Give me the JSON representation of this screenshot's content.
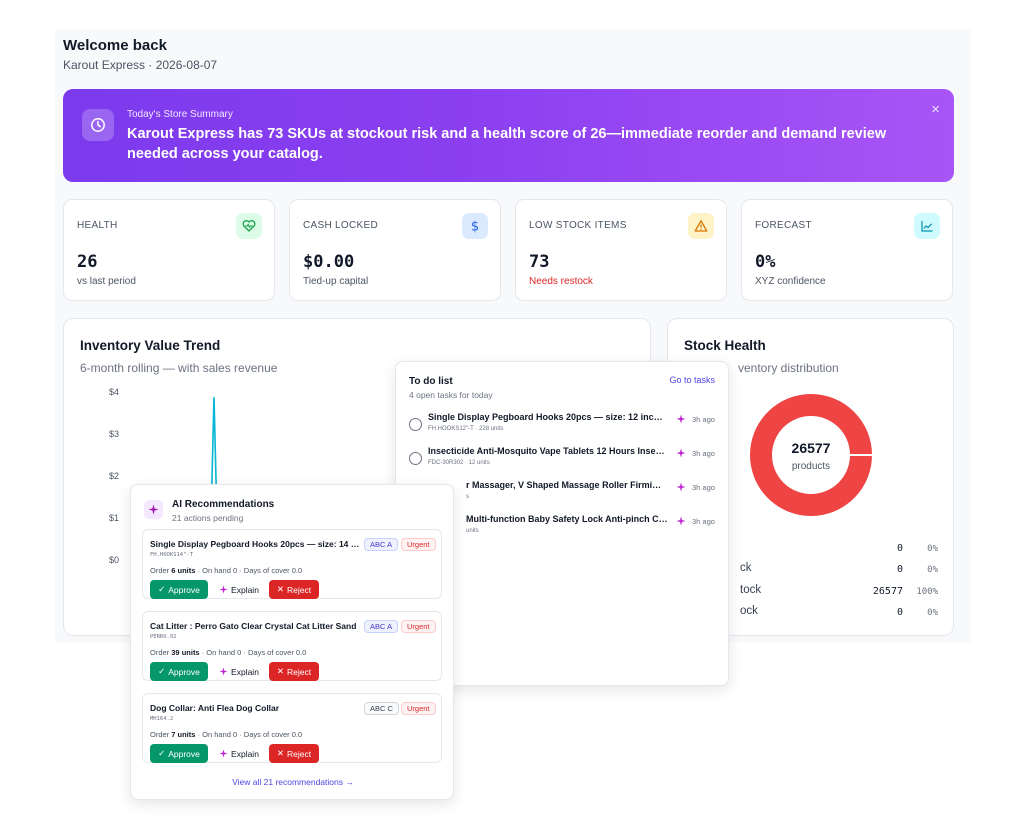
{
  "header": {
    "title": "Welcome back",
    "subtitle": "Karout Express · 2026-08-07"
  },
  "banner": {
    "kicker": "Today's Store Summary",
    "text": "Karout Express has 73 SKUs at stockout risk and a health score of 26—immediate reorder and demand review needed across your catalog.",
    "close": "×",
    "icon": "clock-icon"
  },
  "kpis": [
    {
      "label": "HEALTH",
      "value": "26",
      "sub": "vs last period",
      "icon": "heart-pulse-icon",
      "icon_color": "#16a34a",
      "icon_bg": "#dcfce7"
    },
    {
      "label": "CASH LOCKED",
      "value": "$0.00",
      "sub": "Tied-up capital",
      "icon": "dollar-icon",
      "icon_color": "#2563eb",
      "icon_bg": "#dbeafe"
    },
    {
      "label": "LOW STOCK ITEMS",
      "value": "73",
      "sub": "Needs restock",
      "icon": "warning-icon",
      "icon_color": "#d97706",
      "icon_bg": "#fef3c7"
    },
    {
      "label": "FORECAST",
      "value": "0%",
      "sub": "XYZ confidence",
      "icon": "line-chart-icon",
      "icon_color": "#0891b2",
      "icon_bg": "#cffafe"
    }
  ],
  "trend": {
    "title": "Inventory Value Trend",
    "subtitle": "6-month rolling — with sales revenue",
    "y_ticks": [
      "$4",
      "$3",
      "$2",
      "$1",
      "$0"
    ],
    "line_color": "#06b6d4"
  },
  "chart_data": {
    "type": "line",
    "title": "Inventory Value Trend",
    "subtitle": "6-month rolling — with sales revenue",
    "y_ticks": [
      "$4",
      "$3",
      "$2",
      "$1",
      "$0"
    ],
    "ylim": [
      0,
      4
    ],
    "series": [
      {
        "values": [
          0,
          0,
          3.9,
          0,
          0,
          0
        ],
        "color": "#06b6d4"
      }
    ]
  },
  "stock_health": {
    "title": "Stock Health",
    "subtitle": "ventory distribution",
    "center_value": "26577",
    "center_label": "products",
    "donut_color": "#ef4444",
    "rows": [
      {
        "label": "",
        "value": "0",
        "pct": "0%"
      },
      {
        "label": "ck",
        "value": "0",
        "pct": "0%"
      },
      {
        "label": "tock",
        "value": "26577",
        "pct": "100%"
      },
      {
        "label": "ock",
        "value": "0",
        "pct": "0%"
      }
    ]
  },
  "todo": {
    "title": "To do list",
    "subtitle": "4 open tasks for today",
    "link": "Go to tasks",
    "tasks": [
      {
        "title": "Single Display Pegboard Hooks 20pcs — size: 12 inches",
        "meta": "FH.HOOKS12\"-T · 228 units",
        "time": "3h ago"
      },
      {
        "title": "Insecticide Anti-Mosquito Vape Tablets 12 Hours Insecti...",
        "meta": "FDC-30R302 · 12 units",
        "time": "3h ago"
      },
      {
        "title": "r Massager, V Shaped Massage Roller Firming ...",
        "meta": "s",
        "time": "3h ago"
      },
      {
        "title": "Multi-function Baby Safety Lock Anti-pinch Chi...",
        "meta": "units",
        "time": "3h ago"
      }
    ]
  },
  "ai": {
    "title": "AI Recommendations",
    "subtitle": "21 actions pending",
    "view_all": "View all 21 recommendations →",
    "approve_label": "Approve",
    "explain_label": "Explain",
    "reject_label": "Reject",
    "items": [
      {
        "title": "Single Display Pegboard Hooks 20pcs — size: 14 i...",
        "sku": "FH.HOOKS14\"-T",
        "order_prefix": "Order",
        "qty": "6 units",
        "order_rest": "· On hand 0 · Days of cover 0.0",
        "abc": "ABC A",
        "urgency": "Urgent"
      },
      {
        "title": "Cat Litter : Perro Gato Clear Crystal Cat Litter Sand",
        "sku": "PERRO.02",
        "order_prefix": "Order",
        "qty": "39 units",
        "order_rest": "· On hand 0 · Days of cover 0.0",
        "abc": "ABC A",
        "urgency": "Urgent"
      },
      {
        "title": "Dog Collar: Anti Flea Dog Collar",
        "sku": "MH164.2",
        "order_prefix": "Order",
        "qty": "7 units",
        "order_rest": "· On hand 0 · Days of cover 0.0",
        "abc": "ABC C",
        "urgency": "Urgent"
      }
    ]
  }
}
